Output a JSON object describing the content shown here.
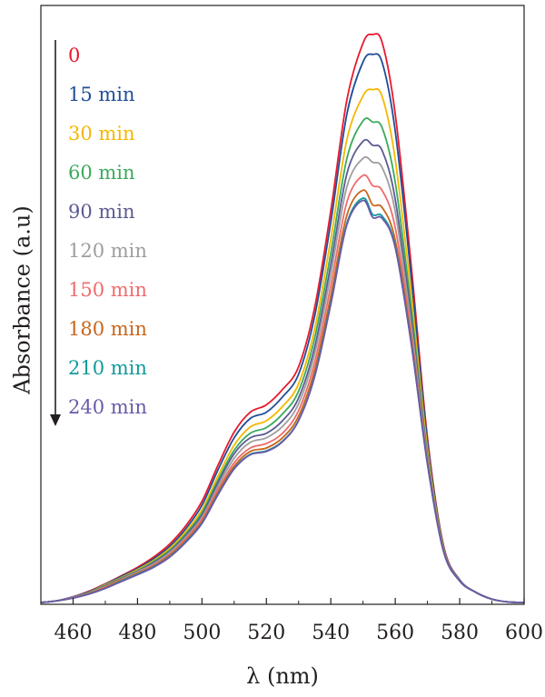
{
  "chart_data": {
    "type": "line",
    "xlabel": "λ (nm)",
    "ylabel": "Absorbance (a.u)",
    "xlim": [
      450,
      600
    ],
    "ylim": [
      0,
      1.0
    ],
    "grid": false,
    "legend_placement": "top-left",
    "x_ticks": [
      "460",
      "480",
      "500",
      "520",
      "540",
      "560",
      "580",
      "600"
    ],
    "x": [
      450,
      455,
      460,
      465,
      470,
      475,
      480,
      485,
      490,
      495,
      500,
      505,
      510,
      515,
      520,
      525,
      530,
      535,
      540,
      545,
      550,
      553,
      556,
      560,
      565,
      570,
      575,
      580,
      585,
      590,
      595,
      600
    ],
    "series": [
      {
        "name": "0",
        "color": "#e8192c",
        "values": [
          0.0,
          0.003,
          0.01,
          0.02,
          0.033,
          0.047,
          0.062,
          0.08,
          0.103,
          0.135,
          0.178,
          0.242,
          0.3,
          0.335,
          0.348,
          0.375,
          0.415,
          0.52,
          0.69,
          0.885,
          0.985,
          1.0,
          0.985,
          0.86,
          0.59,
          0.29,
          0.1,
          0.04,
          0.018,
          0.006,
          0.001,
          0.0
        ]
      },
      {
        "name": "15 min",
        "color": "#1f4e97",
        "values": [
          0.0,
          0.003,
          0.01,
          0.019,
          0.032,
          0.046,
          0.06,
          0.077,
          0.099,
          0.13,
          0.171,
          0.234,
          0.29,
          0.324,
          0.335,
          0.362,
          0.402,
          0.505,
          0.67,
          0.86,
          0.952,
          0.965,
          0.95,
          0.83,
          0.57,
          0.282,
          0.098,
          0.04,
          0.018,
          0.006,
          0.001,
          0.0
        ]
      },
      {
        "name": "30 min",
        "color": "#f5b800",
        "values": [
          0.0,
          0.003,
          0.009,
          0.018,
          0.031,
          0.044,
          0.058,
          0.074,
          0.095,
          0.125,
          0.163,
          0.223,
          0.277,
          0.309,
          0.32,
          0.345,
          0.385,
          0.482,
          0.64,
          0.815,
          0.892,
          0.903,
          0.89,
          0.78,
          0.54,
          0.27,
          0.095,
          0.039,
          0.018,
          0.006,
          0.001,
          0.0
        ]
      },
      {
        "name": "60 min",
        "color": "#3aaa5c",
        "values": [
          0.0,
          0.003,
          0.009,
          0.018,
          0.03,
          0.043,
          0.056,
          0.072,
          0.092,
          0.121,
          0.158,
          0.216,
          0.268,
          0.298,
          0.308,
          0.332,
          0.372,
          0.466,
          0.615,
          0.782,
          0.848,
          0.846,
          0.835,
          0.74,
          0.515,
          0.26,
          0.093,
          0.039,
          0.018,
          0.006,
          0.001,
          0.0
        ]
      },
      {
        "name": "90 min",
        "color": "#5b5b93",
        "values": [
          0.0,
          0.003,
          0.009,
          0.017,
          0.029,
          0.042,
          0.055,
          0.07,
          0.09,
          0.118,
          0.154,
          0.211,
          0.262,
          0.29,
          0.298,
          0.32,
          0.36,
          0.45,
          0.595,
          0.755,
          0.812,
          0.805,
          0.795,
          0.71,
          0.498,
          0.255,
          0.092,
          0.039,
          0.018,
          0.006,
          0.001,
          0.0
        ]
      },
      {
        "name": "120 min",
        "color": "#9e9e9e",
        "values": [
          0.0,
          0.003,
          0.009,
          0.017,
          0.028,
          0.041,
          0.054,
          0.068,
          0.088,
          0.115,
          0.15,
          0.205,
          0.254,
          0.282,
          0.29,
          0.31,
          0.35,
          0.438,
          0.578,
          0.732,
          0.782,
          0.775,
          0.765,
          0.688,
          0.485,
          0.252,
          0.092,
          0.039,
          0.018,
          0.006,
          0.001,
          0.0
        ]
      },
      {
        "name": "150 min",
        "color": "#ef6b6b",
        "values": [
          0.0,
          0.003,
          0.009,
          0.016,
          0.027,
          0.04,
          0.052,
          0.066,
          0.085,
          0.112,
          0.146,
          0.199,
          0.246,
          0.272,
          0.28,
          0.298,
          0.338,
          0.423,
          0.558,
          0.705,
          0.752,
          0.734,
          0.725,
          0.66,
          0.47,
          0.248,
          0.091,
          0.038,
          0.018,
          0.006,
          0.001,
          0.0
        ]
      },
      {
        "name": "180 min",
        "color": "#c8651b",
        "values": [
          0.0,
          0.003,
          0.008,
          0.016,
          0.026,
          0.039,
          0.051,
          0.064,
          0.083,
          0.109,
          0.142,
          0.194,
          0.24,
          0.266,
          0.272,
          0.29,
          0.328,
          0.41,
          0.54,
          0.682,
          0.726,
          0.7,
          0.695,
          0.638,
          0.46,
          0.245,
          0.091,
          0.038,
          0.018,
          0.006,
          0.001,
          0.0
        ]
      },
      {
        "name": "210 min",
        "color": "#119a9b",
        "values": [
          0.0,
          0.003,
          0.008,
          0.015,
          0.025,
          0.038,
          0.05,
          0.063,
          0.081,
          0.107,
          0.14,
          0.191,
          0.236,
          0.261,
          0.267,
          0.284,
          0.321,
          0.4,
          0.528,
          0.668,
          0.712,
          0.683,
          0.68,
          0.628,
          0.455,
          0.244,
          0.09,
          0.038,
          0.018,
          0.006,
          0.001,
          0.0
        ]
      },
      {
        "name": "240 min",
        "color": "#6a5aa8",
        "values": [
          0.0,
          0.003,
          0.008,
          0.015,
          0.025,
          0.037,
          0.049,
          0.062,
          0.08,
          0.106,
          0.139,
          0.19,
          0.235,
          0.26,
          0.266,
          0.283,
          0.32,
          0.398,
          0.525,
          0.665,
          0.708,
          0.678,
          0.676,
          0.625,
          0.454,
          0.244,
          0.09,
          0.038,
          0.018,
          0.006,
          0.001,
          0.0
        ]
      }
    ]
  }
}
